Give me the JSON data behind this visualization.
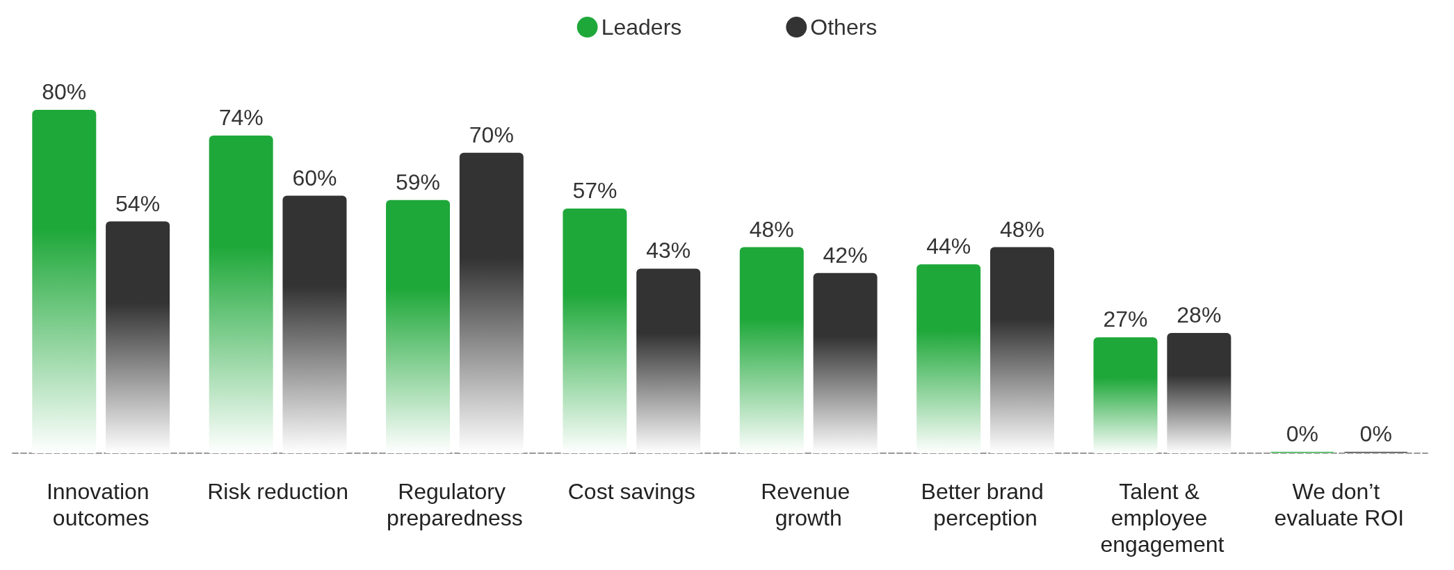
{
  "chart_data": {
    "type": "bar",
    "categories": [
      "Innovation outcomes",
      "Risk reduction",
      "Regulatory preparedness",
      "Cost savings",
      "Revenue growth",
      "Better brand perception",
      "Talent & employee engagement",
      "We don’t evaluate ROI"
    ],
    "series": [
      {
        "name": "Leaders",
        "color": "#1fa83a",
        "values": [
          80,
          74,
          59,
          57,
          48,
          44,
          27,
          0
        ],
        "value_labels": [
          "80%",
          "74%",
          "59%",
          "57%",
          "48%",
          "44%",
          "27%",
          "0%"
        ]
      },
      {
        "name": "Others",
        "color": "#333333",
        "values": [
          54,
          60,
          70,
          43,
          42,
          48,
          28,
          0
        ],
        "value_labels": [
          "54%",
          "60%",
          "70%",
          "43%",
          "42%",
          "48%",
          "28%",
          "0%"
        ]
      }
    ],
    "data_labels": true,
    "legend": "top"
  }
}
